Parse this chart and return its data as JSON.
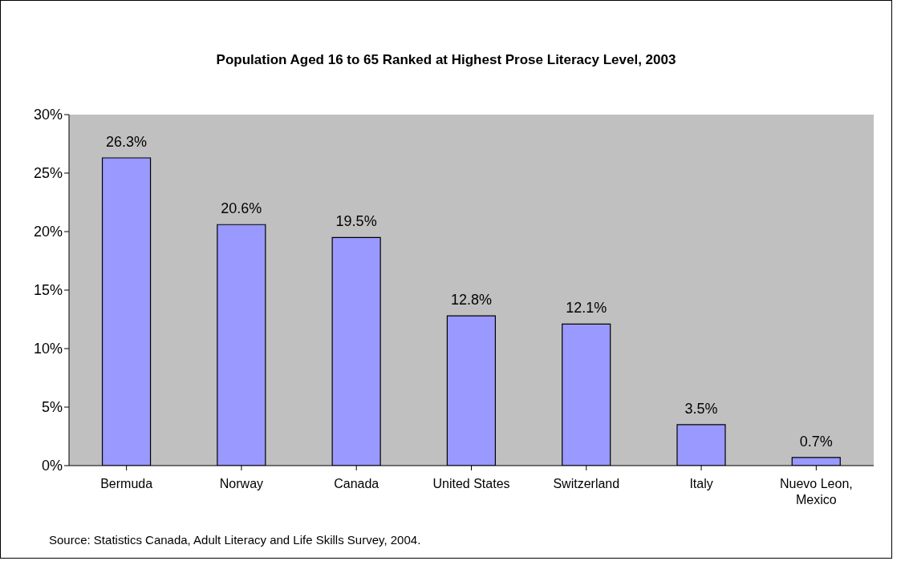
{
  "chart_data": {
    "type": "bar",
    "title": "Population Aged 16 to 65 Ranked at Highest Prose Literacy Level, 2003",
    "categories": [
      "Bermuda",
      "Norway",
      "Canada",
      "United States",
      "Switzerland",
      "Italy",
      "Nuevo Leon, Mexico"
    ],
    "values": [
      26.3,
      20.6,
      19.5,
      12.8,
      12.1,
      3.5,
      0.7
    ],
    "value_labels": [
      "26.3%",
      "20.6%",
      "19.5%",
      "12.8%",
      "12.1%",
      "3.5%",
      "0.7%"
    ],
    "color": "#9999ff",
    "ylim": [
      0,
      30
    ],
    "yticks": [
      {
        "value": 0,
        "label": "0%"
      },
      {
        "value": 5,
        "label": "5%"
      },
      {
        "value": 10,
        "label": "10%"
      },
      {
        "value": 15,
        "label": "15%"
      },
      {
        "value": 20,
        "label": "20%"
      },
      {
        "value": 25,
        "label": "25%"
      },
      {
        "value": 30,
        "label": "30%"
      }
    ],
    "legend": false,
    "annotations": [
      "Source: Statistics Canada, Adult Literacy and Life Skills Survey, 2004."
    ]
  }
}
